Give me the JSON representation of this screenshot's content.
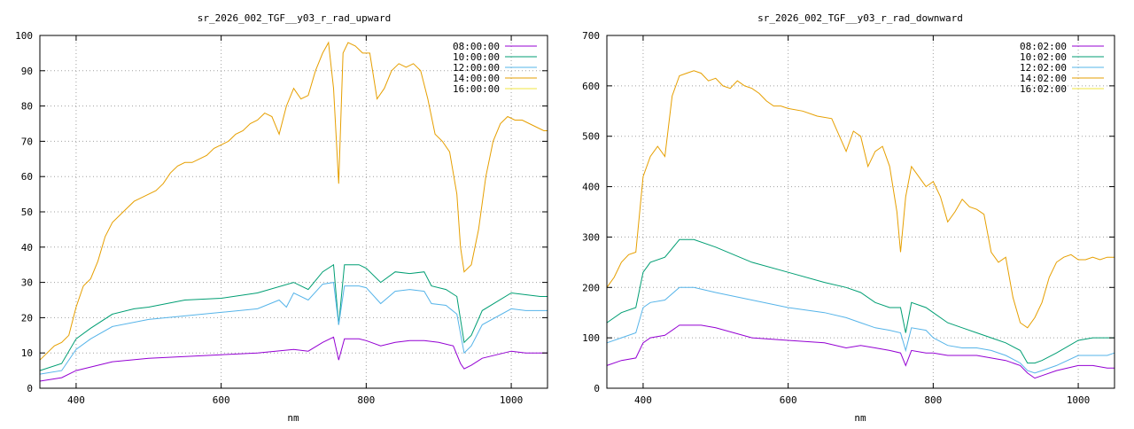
{
  "chart_data": [
    {
      "type": "line",
      "title": "sr_2026_002_TGF__y03_r_rad_upward",
      "xlabel": "nm",
      "ylabel": "",
      "xlim": [
        350,
        1050
      ],
      "ylim": [
        0,
        100
      ],
      "x_ticks": [
        400,
        600,
        800,
        1000
      ],
      "y_ticks": [
        0,
        10,
        20,
        30,
        40,
        50,
        60,
        70,
        80,
        90,
        100
      ],
      "grid": true,
      "legend_position": "top-right",
      "series": [
        {
          "name": "08:00:00",
          "color": "#9400d3",
          "x": [
            350,
            380,
            400,
            420,
            450,
            500,
            550,
            600,
            650,
            700,
            720,
            740,
            755,
            762,
            770,
            790,
            800,
            820,
            840,
            860,
            880,
            900,
            920,
            930,
            935,
            945,
            960,
            1000,
            1020,
            1040,
            1050
          ],
          "y": [
            2,
            3,
            5,
            6,
            7.5,
            8.5,
            9,
            9.5,
            10,
            11,
            10.5,
            13,
            14.5,
            8,
            14,
            14,
            13.5,
            12,
            13,
            13.5,
            13.5,
            13,
            12,
            7,
            5.5,
            6.5,
            8.5,
            10.5,
            10,
            10,
            10
          ]
        },
        {
          "name": "10:00:00",
          "color": "#009e73",
          "x": [
            350,
            380,
            400,
            420,
            450,
            480,
            500,
            550,
            600,
            650,
            700,
            720,
            740,
            755,
            762,
            770,
            790,
            800,
            820,
            840,
            860,
            880,
            890,
            910,
            925,
            935,
            945,
            960,
            1000,
            1020,
            1040,
            1050
          ],
          "y": [
            5,
            7,
            14,
            17,
            21,
            22.5,
            23,
            25,
            25.5,
            27,
            30,
            28,
            33,
            35,
            18,
            35,
            35,
            34,
            30,
            33,
            32.5,
            33,
            29,
            28,
            26,
            13,
            15,
            22,
            27,
            26.5,
            26,
            26
          ]
        },
        {
          "name": "12:00:00",
          "color": "#56b4e9",
          "x": [
            350,
            380,
            400,
            420,
            450,
            500,
            550,
            600,
            650,
            680,
            690,
            700,
            720,
            740,
            755,
            762,
            770,
            790,
            800,
            820,
            840,
            860,
            880,
            890,
            910,
            925,
            935,
            945,
            960,
            1000,
            1020,
            1040,
            1050
          ],
          "y": [
            4,
            5,
            11,
            14,
            17.5,
            19.5,
            20.5,
            21.5,
            22.5,
            25,
            23,
            27,
            25,
            29.5,
            30,
            18,
            29,
            29,
            28.5,
            24,
            27.5,
            28,
            27.5,
            24,
            23.5,
            21,
            10,
            12,
            18,
            22.5,
            22,
            22,
            22
          ]
        },
        {
          "name": "14:00:00",
          "color": "#e69f00",
          "x": [
            350,
            360,
            370,
            380,
            390,
            400,
            410,
            420,
            430,
            440,
            450,
            460,
            470,
            480,
            490,
            500,
            510,
            520,
            530,
            540,
            550,
            560,
            570,
            580,
            590,
            600,
            610,
            620,
            630,
            640,
            650,
            660,
            670,
            680,
            690,
            700,
            710,
            720,
            730,
            740,
            748,
            755,
            762,
            768,
            775,
            785,
            795,
            805,
            815,
            825,
            835,
            845,
            855,
            865,
            875,
            885,
            895,
            905,
            915,
            925,
            930,
            935,
            945,
            955,
            965,
            975,
            985,
            995,
            1005,
            1015,
            1025,
            1035,
            1045,
            1050
          ],
          "y": [
            8,
            10,
            12,
            13,
            15,
            23,
            29,
            31,
            36,
            43,
            47,
            49,
            51,
            53,
            54,
            55,
            56,
            58,
            61,
            63,
            64,
            64,
            65,
            66,
            68,
            69,
            70,
            72,
            73,
            75,
            76,
            78,
            77,
            72,
            80,
            85,
            82,
            83,
            90,
            95,
            98,
            85,
            58,
            95,
            98,
            97,
            95,
            95,
            82,
            85,
            90,
            92,
            91,
            92,
            90,
            82,
            72,
            70,
            67,
            55,
            40,
            33,
            35,
            45,
            60,
            70,
            75,
            77,
            76,
            76,
            75,
            74,
            73,
            73
          ]
        },
        {
          "name": "16:00:00",
          "color": "#f0e442",
          "x": [],
          "y": []
        }
      ]
    },
    {
      "type": "line",
      "title": "sr_2026_002_TGF__y03_r_rad_downward",
      "xlabel": "nm",
      "ylabel": "",
      "xlim": [
        350,
        1050
      ],
      "ylim": [
        0,
        700
      ],
      "x_ticks": [
        400,
        600,
        800,
        1000
      ],
      "y_ticks": [
        0,
        100,
        200,
        300,
        400,
        500,
        600,
        700
      ],
      "grid": true,
      "legend_position": "top-right",
      "series": [
        {
          "name": "08:02:00",
          "color": "#9400d3",
          "x": [
            350,
            370,
            390,
            400,
            410,
            430,
            450,
            480,
            500,
            550,
            600,
            650,
            680,
            700,
            720,
            740,
            755,
            762,
            770,
            790,
            800,
            820,
            840,
            860,
            880,
            900,
            920,
            930,
            940,
            950,
            970,
            1000,
            1020,
            1040,
            1050
          ],
          "y": [
            45,
            55,
            60,
            90,
            100,
            105,
            125,
            125,
            120,
            100,
            95,
            90,
            80,
            85,
            80,
            75,
            70,
            45,
            75,
            70,
            70,
            65,
            65,
            65,
            60,
            55,
            45,
            30,
            20,
            25,
            35,
            45,
            45,
            40,
            40
          ]
        },
        {
          "name": "10:02:00",
          "color": "#009e73",
          "x": [
            350,
            370,
            390,
            400,
            410,
            430,
            450,
            470,
            500,
            550,
            600,
            650,
            680,
            700,
            720,
            740,
            755,
            762,
            770,
            790,
            800,
            820,
            840,
            860,
            880,
            900,
            920,
            930,
            940,
            950,
            970,
            1000,
            1020,
            1040,
            1050
          ],
          "y": [
            130,
            150,
            160,
            230,
            250,
            260,
            295,
            295,
            280,
            250,
            230,
            210,
            200,
            190,
            170,
            160,
            160,
            110,
            170,
            160,
            150,
            130,
            120,
            110,
            100,
            90,
            75,
            50,
            50,
            55,
            70,
            95,
            100,
            100,
            100
          ]
        },
        {
          "name": "12:02:00",
          "color": "#56b4e9",
          "x": [
            350,
            370,
            390,
            400,
            410,
            430,
            450,
            470,
            500,
            550,
            600,
            650,
            680,
            700,
            720,
            740,
            755,
            762,
            770,
            790,
            800,
            820,
            840,
            860,
            880,
            900,
            920,
            930,
            940,
            950,
            970,
            1000,
            1020,
            1040,
            1050
          ],
          "y": [
            90,
            100,
            110,
            160,
            170,
            175,
            200,
            200,
            190,
            175,
            160,
            150,
            140,
            130,
            120,
            115,
            110,
            75,
            120,
            115,
            100,
            85,
            80,
            80,
            75,
            65,
            50,
            35,
            30,
            35,
            45,
            65,
            65,
            65,
            70
          ]
        },
        {
          "name": "14:02:00",
          "color": "#e69f00",
          "x": [
            350,
            360,
            370,
            380,
            390,
            400,
            410,
            420,
            430,
            440,
            450,
            460,
            470,
            480,
            490,
            500,
            510,
            520,
            530,
            540,
            550,
            560,
            570,
            580,
            590,
            600,
            620,
            640,
            660,
            680,
            690,
            700,
            710,
            720,
            730,
            740,
            750,
            755,
            762,
            770,
            780,
            790,
            800,
            810,
            820,
            830,
            840,
            850,
            860,
            870,
            880,
            890,
            900,
            910,
            920,
            930,
            940,
            950,
            960,
            970,
            980,
            990,
            1000,
            1010,
            1020,
            1030,
            1040,
            1050
          ],
          "y": [
            200,
            220,
            250,
            265,
            270,
            420,
            460,
            480,
            460,
            580,
            620,
            625,
            630,
            625,
            610,
            615,
            600,
            595,
            610,
            600,
            595,
            585,
            570,
            560,
            560,
            555,
            550,
            540,
            535,
            470,
            510,
            500,
            440,
            470,
            480,
            440,
            350,
            270,
            380,
            440,
            420,
            400,
            410,
            380,
            330,
            350,
            375,
            360,
            355,
            345,
            270,
            250,
            260,
            180,
            130,
            120,
            140,
            170,
            220,
            250,
            260,
            265,
            255,
            255,
            260,
            255,
            260,
            260
          ]
        },
        {
          "name": "16:02:00",
          "color": "#f0e442",
          "x": [],
          "y": []
        }
      ]
    }
  ]
}
